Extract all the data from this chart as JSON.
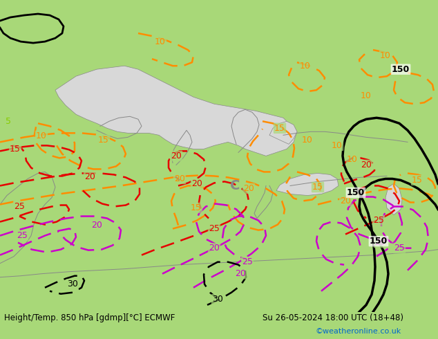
{
  "title_left": "Height/Temp. 850 hPa [gdmp][°C] ECMWF",
  "title_right": "Su 26-05-2024 18:00 UTC (18+48)",
  "copyright": "©weatheronline.co.uk",
  "bg_color": "#a8d878",
  "sea_color": "#d8d8d8",
  "fig_width": 6.34,
  "fig_height": 4.9,
  "dpi": 100,
  "border_color": "#888888",
  "orange_color": "#ff8c00",
  "red_color": "#e60000",
  "magenta_color": "#cc00cc"
}
